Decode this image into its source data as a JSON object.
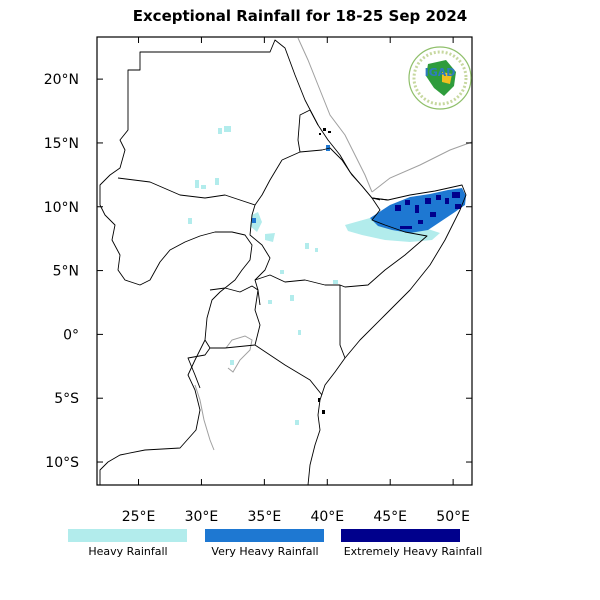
{
  "title": "Exceptional Rainfall for 18-25 Sep 2024",
  "logo": {
    "text": "IGAD",
    "icon": "igad-logo"
  },
  "axes": {
    "x_ticks": [
      {
        "value": 25,
        "label": "25°E"
      },
      {
        "value": 30,
        "label": "30°E"
      },
      {
        "value": 35,
        "label": "35°E"
      },
      {
        "value": 40,
        "label": "40°E"
      },
      {
        "value": 45,
        "label": "45°E"
      },
      {
        "value": 50,
        "label": "50°E"
      }
    ],
    "y_ticks": [
      {
        "value": 20,
        "label": "20°N"
      },
      {
        "value": 15,
        "label": "15°N"
      },
      {
        "value": 10,
        "label": "10°N"
      },
      {
        "value": 5,
        "label": "5°N"
      },
      {
        "value": 0,
        "label": "0°"
      },
      {
        "value": -5,
        "label": "5°S"
      },
      {
        "value": -10,
        "label": "10°S"
      }
    ],
    "lon_range": [
      21.7,
      51.5
    ],
    "lat_range": [
      -11.8,
      23.3
    ]
  },
  "legend": [
    {
      "label": "Heavy Rainfall",
      "color": "#b2ecec"
    },
    {
      "label": "Very Heavy Rainfall",
      "color": "#1e78d2"
    },
    {
      "label": "Extremely Heavy Rainfall",
      "color": "#00008c"
    }
  ]
}
